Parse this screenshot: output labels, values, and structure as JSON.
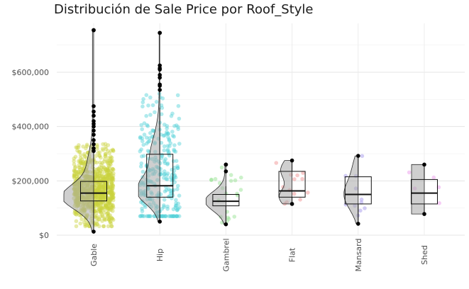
{
  "chart_data": {
    "type": "raincloud",
    "title": "Distribución de Sale Price por Roof_Style",
    "xlabel": "",
    "ylabel": "",
    "ylim": [
      0,
      780000
    ],
    "y_ticks": [
      0,
      200000,
      400000,
      600000
    ],
    "y_tick_labels": [
      "$0",
      "$200,000",
      "$400,000",
      "$600,000"
    ],
    "grid": true,
    "legend": "none",
    "categories": [
      "Gable",
      "Hip",
      "Gambrel",
      "Flat",
      "Mansard",
      "Shed"
    ],
    "groups": [
      {
        "name": "Gable",
        "color": "#c9d33f",
        "min": 13000,
        "q1": 126000,
        "median": 155000,
        "q3": 198000,
        "max": 755000,
        "whisker_low": 13000,
        "whisker_high": 305000,
        "outliers_top": [
          310000,
          320000,
          335000,
          350000,
          370000,
          385000,
          400000,
          410000,
          420000,
          440000,
          455000,
          475000,
          755000
        ],
        "n": 1141
      },
      {
        "name": "Hip",
        "color": "#4fd0d8",
        "min": 50000,
        "q1": 140000,
        "median": 182000,
        "q3": 298000,
        "max": 745000,
        "whisker_low": 50000,
        "whisker_high": 470000,
        "outliers_top": [
          535000,
          550000,
          555000,
          580000,
          590000,
          610000,
          615000,
          625000,
          745000
        ],
        "n": 286
      },
      {
        "name": "Gambrel",
        "color": "#8fe08a",
        "min": 40000,
        "q1": 108000,
        "median": 125000,
        "q3": 150000,
        "max": 260000,
        "whisker_low": 40000,
        "whisker_high": 180000,
        "outliers_top": [
          235000,
          260000
        ],
        "n": 22
      },
      {
        "name": "Flat",
        "color": "#f08a8a",
        "min": 115000,
        "q1": 140000,
        "median": 163000,
        "q3": 235000,
        "max": 275000,
        "whisker_low": 115000,
        "whisker_high": 275000,
        "outliers_top": [],
        "n": 13
      },
      {
        "name": "Mansard",
        "color": "#9b8ee8",
        "min": 42000,
        "q1": 115000,
        "median": 150000,
        "q3": 215000,
        "max": 292000,
        "whisker_low": 42000,
        "whisker_high": 292000,
        "outliers_top": [],
        "n": 11
      },
      {
        "name": "Shed",
        "color": "#e890e8",
        "min": 78000,
        "q1": 115000,
        "median": 155000,
        "q3": 205000,
        "max": 260000,
        "whisker_low": 78000,
        "whisker_high": 260000,
        "outliers_top": [],
        "n": 5
      }
    ]
  }
}
